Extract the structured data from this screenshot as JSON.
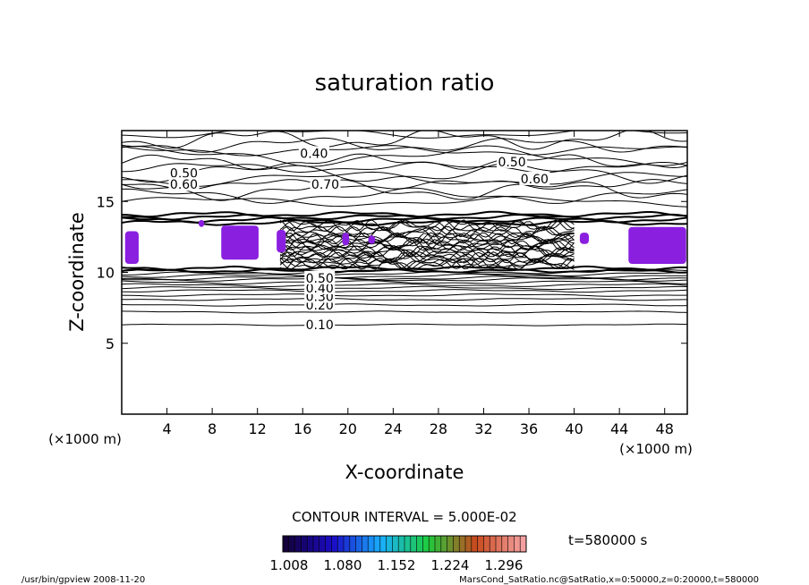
{
  "chart_data": {
    "type": "contour",
    "title": "saturation ratio",
    "xlabel": "X-coordinate",
    "ylabel": "Z-coordinate",
    "x_unit": "(×1000 m)",
    "y_unit": "(×1000 m)",
    "xlim": [
      0,
      50
    ],
    "ylim": [
      0,
      20
    ],
    "x_ticks": [
      4,
      8,
      12,
      16,
      20,
      24,
      28,
      32,
      36,
      40,
      44,
      48
    ],
    "y_ticks": [
      5,
      10,
      15
    ],
    "contour_interval_text": "CONTOUR INTERVAL = 5.000E-02",
    "time_text": "t=580000 s",
    "contour_labels": [
      {
        "text": "0.10",
        "x": 17.5,
        "z": 6.3
      },
      {
        "text": "0.20",
        "x": 17.5,
        "z": 7.7
      },
      {
        "text": "0.30",
        "x": 17.5,
        "z": 8.3
      },
      {
        "text": "0.40",
        "x": 17.5,
        "z": 8.9
      },
      {
        "text": "0.50",
        "x": 17.5,
        "z": 9.6
      },
      {
        "text": "0.40",
        "x": 17.0,
        "z": 18.4
      },
      {
        "text": "0.50",
        "x": 5.5,
        "z": 17.0
      },
      {
        "text": "0.60",
        "x": 5.5,
        "z": 16.2
      },
      {
        "text": "0.70",
        "x": 18.0,
        "z": 16.2
      },
      {
        "text": "0.50",
        "x": 34.5,
        "z": 17.8
      },
      {
        "text": "0.60",
        "x": 36.5,
        "z": 16.6
      }
    ],
    "colorbar": {
      "tick_labels": [
        "1.008",
        "1.080",
        "1.152",
        "1.224",
        "1.296"
      ],
      "colors": [
        "#14003a",
        "#1a0cc8",
        "#19b0ff",
        "#1ecc3c",
        "#c84a1e",
        "#f5a0a0"
      ]
    },
    "supersaturated_regions_color": "#8a1fe0"
  },
  "footer": {
    "left": "/usr/bin/gpview   2008-11-20",
    "right": "MarsCond_SatRatio.nc@SatRatio,x=0:50000,z=0:20000,t=580000"
  }
}
